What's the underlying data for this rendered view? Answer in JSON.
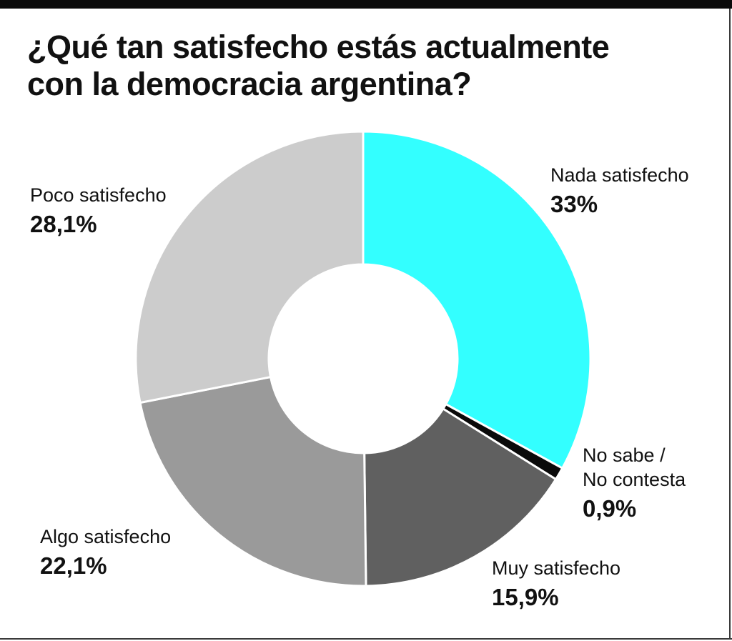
{
  "title_lines": [
    "¿Qué tan satisfecho estás actualmente",
    "con la democracia argentina?"
  ],
  "chart_data": {
    "type": "pie",
    "variant": "donut",
    "title": "¿Qué tan satisfecho estás actualmente con la democracia argentina?",
    "unit": "%",
    "slices": [
      {
        "name_lines": [
          "Nada satisfecho"
        ],
        "value": 33.0,
        "label": "33%",
        "color": "#33ffff"
      },
      {
        "name_lines": [
          "No sabe /",
          "No contesta"
        ],
        "value": 0.9,
        "label": "0,9%",
        "color": "#0a0a0a"
      },
      {
        "name_lines": [
          "Muy satisfecho"
        ],
        "value": 15.9,
        "label": "15,9%",
        "color": "#606060"
      },
      {
        "name_lines": [
          "Algo satisfecho"
        ],
        "value": 22.1,
        "label": "22,1%",
        "color": "#9a9a9a"
      },
      {
        "name_lines": [
          "Poco satisfecho"
        ],
        "value": 28.1,
        "label": "28,1%",
        "color": "#cccccc"
      }
    ]
  }
}
